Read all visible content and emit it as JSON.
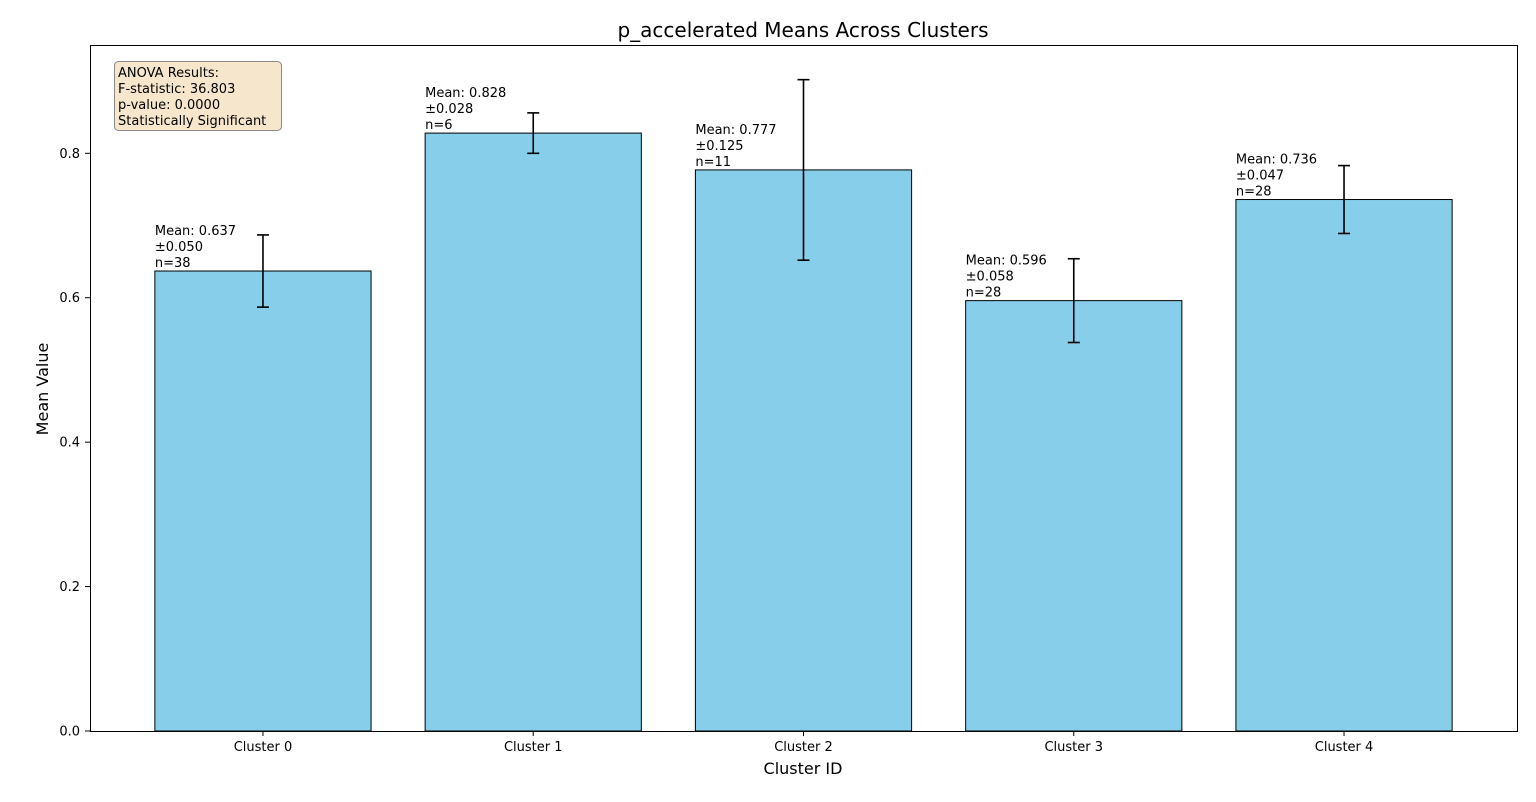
{
  "chart_data": {
    "type": "bar",
    "title": "p_accelerated Means Across Clusters",
    "xlabel": "Cluster ID",
    "ylabel": "Mean Value",
    "ylim": [
      0,
      0.95
    ],
    "yticks": [
      "0.0",
      "0.2",
      "0.4",
      "0.6",
      "0.8"
    ],
    "grid": false,
    "categories": [
      "Cluster 0",
      "Cluster 1",
      "Cluster 2",
      "Cluster 3",
      "Cluster 4"
    ],
    "values": [
      0.637,
      0.828,
      0.777,
      0.596,
      0.736
    ],
    "errors": [
      0.05,
      0.028,
      0.125,
      0.058,
      0.047
    ],
    "counts": [
      38,
      6,
      11,
      28,
      28
    ],
    "annotations": [
      {
        "mean": "Mean: 0.637",
        "error": "±0.050",
        "n": "n=38"
      },
      {
        "mean": "Mean: 0.828",
        "error": "±0.028",
        "n": "n=6"
      },
      {
        "mean": "Mean: 0.777",
        "error": "±0.125",
        "n": "n=11"
      },
      {
        "mean": "Mean: 0.596",
        "error": "±0.058",
        "n": "n=28"
      },
      {
        "mean": "Mean: 0.736",
        "error": "±0.047",
        "n": "n=28"
      }
    ],
    "stats_box": {
      "lines": [
        "ANOVA Results:",
        "F-statistic: 36.803",
        "p-value: 0.0000",
        "Statistically Significant"
      ],
      "placement": "top-left"
    },
    "colors": {
      "bar_fill": "#87CEEB",
      "bar_edge": "#000000",
      "error_bar": "#000000",
      "stats_box_fill": "#F5E6CC",
      "stats_box_edge": "#8A8A8A"
    }
  }
}
